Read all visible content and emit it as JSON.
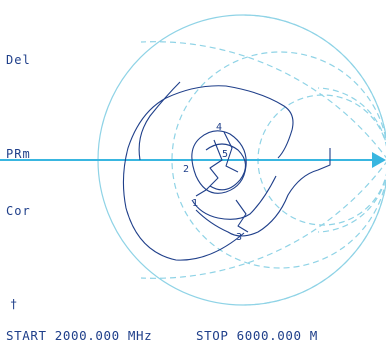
{
  "labels": {
    "del": "Del",
    "prm": "PRm",
    "cor": "Cor",
    "marker": "†"
  },
  "footer": {
    "start": "START 2000.000 MHz",
    "stop": "STOP 6000.000 M"
  },
  "markers": [
    "1",
    "2",
    "3",
    "4",
    "5"
  ],
  "colors": {
    "grid": "#8fd3e6",
    "axis": "#39b6e0",
    "trace": "#1f3f8a",
    "text": "#1f3f8a"
  }
}
